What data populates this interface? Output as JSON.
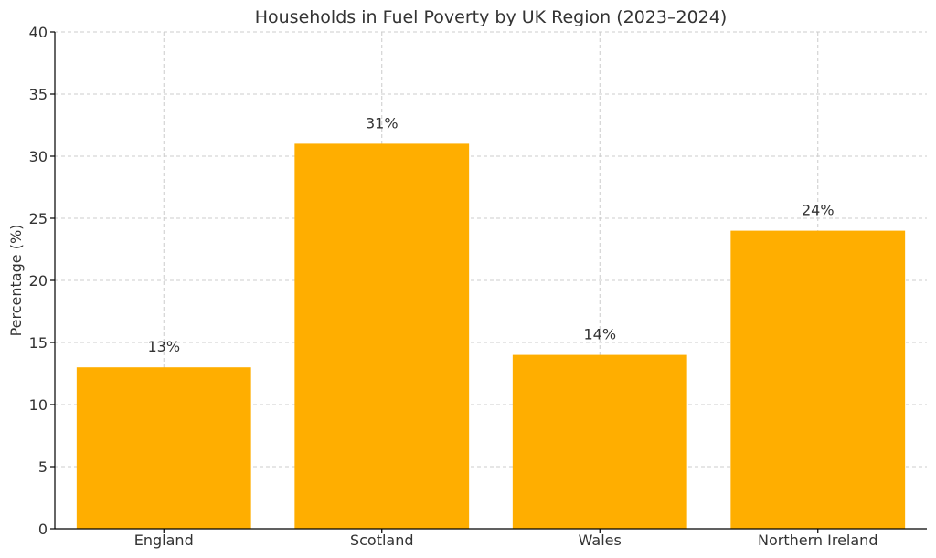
{
  "chart_data": {
    "type": "bar",
    "title": "Households in Fuel Poverty by UK Region (2023–2024)",
    "xlabel": "",
    "ylabel": "Percentage (%)",
    "categories": [
      "England",
      "Scotland",
      "Wales",
      "Northern Ireland"
    ],
    "values": [
      13,
      31,
      14,
      24
    ],
    "data_labels": [
      "13%",
      "31%",
      "14%",
      "24%"
    ],
    "ylim": [
      0,
      40
    ],
    "yticks": [
      0,
      5,
      10,
      15,
      20,
      25,
      30,
      35,
      40
    ],
    "ytick_labels": [
      "0",
      "5",
      "10",
      "15",
      "20",
      "25",
      "30",
      "35",
      "40"
    ],
    "grid": true,
    "bar_color": "#FFAE00"
  }
}
